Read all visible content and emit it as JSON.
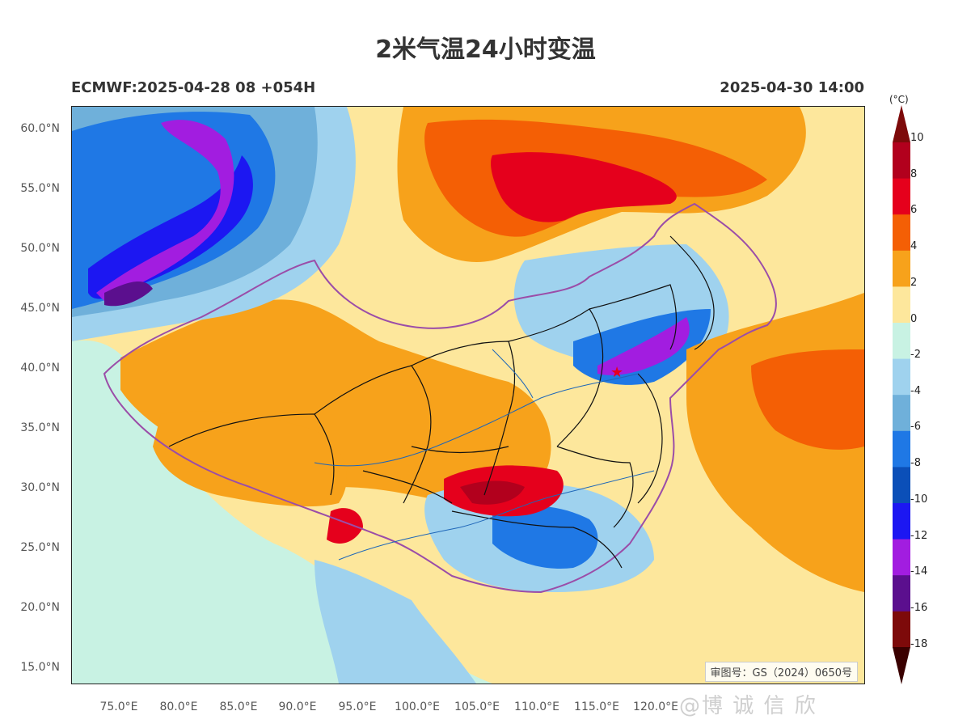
{
  "title": "2米气温24小时变温",
  "model_run": "ECMWF:2025-04-28 08 +054H",
  "valid_time": "2025-04-30 14:00",
  "approval_number": "审图号：GS（2024）0650号",
  "watermark": "@博 诚 信 欣",
  "colorbar": {
    "unit": "(°C)",
    "labels": [
      "10",
      "8",
      "6",
      "4",
      "2",
      "0",
      "-2",
      "-4",
      "-6",
      "-8",
      "-10",
      "-12",
      "-14",
      "-16",
      "-18"
    ],
    "colors": [
      "#b2001d",
      "#e5001c",
      "#f45f05",
      "#f7a21b",
      "#fde79c",
      "#c8f2e3",
      "#9fd2ee",
      "#6fb0da",
      "#1f78e5",
      "#0b4fb8",
      "#1c17f2",
      "#a21de0",
      "#5b0f8e",
      "#7d0a0a"
    ]
  },
  "lat_ticks": [
    "60.0°N",
    "55.0°N",
    "50.0°N",
    "45.0°N",
    "40.0°N",
    "35.0°N",
    "30.0°N",
    "25.0°N",
    "20.0°N",
    "15.0°N"
  ],
  "lon_ticks": [
    "75.0°E",
    "80.0°E",
    "85.0°E",
    "90.0°E",
    "95.0°E",
    "100.0°E",
    "105.0°E",
    "110.0°E",
    "115.0°E",
    "120.0°E"
  ],
  "legend_colors": {
    "warm_light": "#fde79c",
    "warm_orange": "#f7a21b",
    "warm_dark_orange": "#f45f05",
    "warm_red": "#e5001c",
    "warm_dark_red": "#b2001d",
    "cool_mint": "#c8f2e3",
    "cool_light_blue": "#9fd2ee",
    "cool_blue": "#6fb0da",
    "cool_mid_blue": "#1f78e5",
    "cool_dark_blue": "#0b4fb8",
    "cool_deep": "#1c17f2",
    "cool_purple": "#a21de0",
    "cool_dark_purple": "#5b0f8e"
  }
}
